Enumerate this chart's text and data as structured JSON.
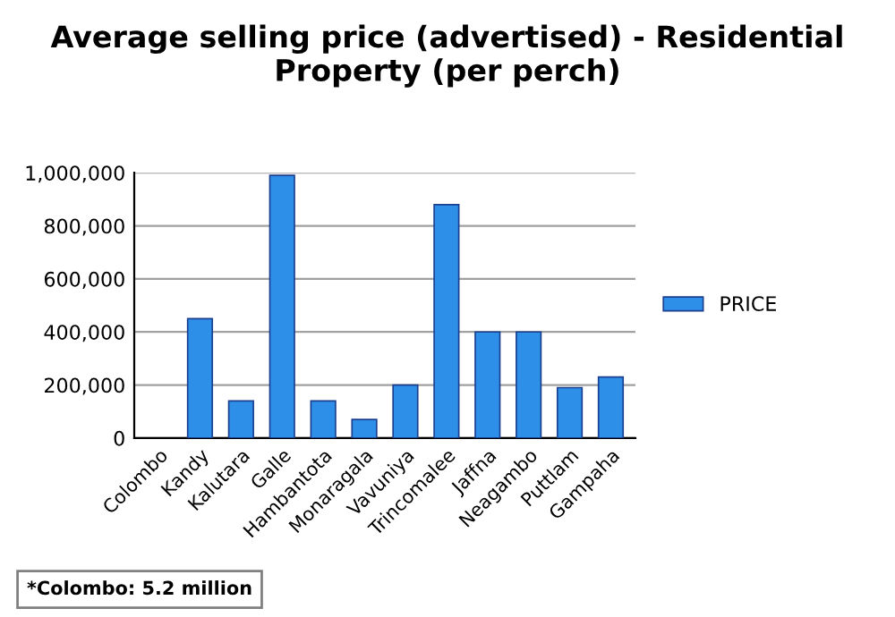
{
  "chart_data": {
    "type": "bar",
    "title": "Average selling price (advertised) - Residential Property (per perch)",
    "categories": [
      "Colombo",
      "Kandy",
      "Kalutara",
      "Galle",
      "Hambantota",
      "Monaragala",
      "Vavuniya",
      "Trincomalee",
      "Jaffna",
      "Neagambo",
      "Puttlam",
      "Gampaha"
    ],
    "series": [
      {
        "name": "PRICE",
        "color": "#2e8fe8",
        "values": [
          null,
          450000,
          140000,
          990000,
          140000,
          70000,
          200000,
          880000,
          400000,
          400000,
          190000,
          230000
        ]
      }
    ],
    "ylim": [
      0,
      1000000
    ],
    "yticks": [
      {
        "value": 0,
        "label": "0"
      },
      {
        "value": 200000,
        "label": "200,000"
      },
      {
        "value": 400000,
        "label": "400,000"
      },
      {
        "value": 600000,
        "label": "600,000"
      },
      {
        "value": 800000,
        "label": "800,000"
      },
      {
        "value": 1000000,
        "label": "1,000,000"
      }
    ],
    "grid": "y",
    "legend": "right",
    "annotations": [
      "*Colombo: 5.2 million"
    ]
  }
}
